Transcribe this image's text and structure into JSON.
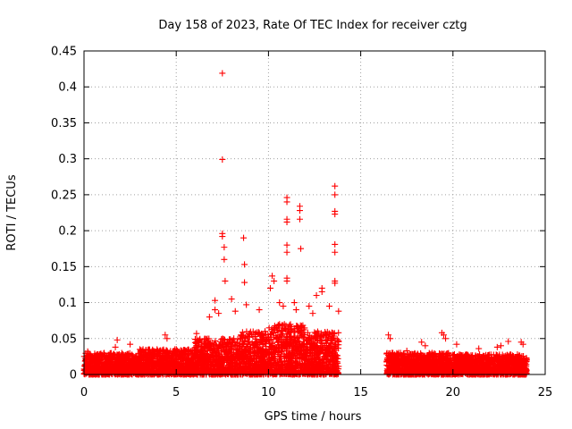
{
  "chart_data": {
    "type": "scatter",
    "title": "Day 158 of 2023, Rate Of TEC Index for receiver cztg",
    "xlabel": "GPS time / hours",
    "ylabel": "ROTI / TECUs",
    "xlim": [
      0,
      25
    ],
    "ylim": [
      0,
      0.45
    ],
    "xticks": [
      0,
      5,
      10,
      15,
      20,
      25
    ],
    "xtick_labels": [
      "0",
      "5",
      "10",
      "15",
      "20",
      "25"
    ],
    "yticks": [
      0,
      0.05,
      0.1,
      0.15,
      0.2,
      0.25,
      0.3,
      0.35,
      0.4,
      0.45
    ],
    "ytick_labels": [
      "0",
      "0.05",
      "0.1",
      "0.15",
      "0.2",
      "0.25",
      "0.3",
      "0.35",
      "0.4",
      "0.45"
    ],
    "grid": true,
    "marker": "+",
    "color": "#ff0000",
    "series": [
      {
        "name": "ROTI",
        "points": [
          [
            7.5,
            0.419
          ],
          [
            7.5,
            0.299
          ],
          [
            7.5,
            0.196
          ],
          [
            7.5,
            0.192
          ],
          [
            7.6,
            0.177
          ],
          [
            7.6,
            0.16
          ],
          [
            7.65,
            0.13
          ],
          [
            8.65,
            0.19
          ],
          [
            8.7,
            0.153
          ],
          [
            8.7,
            0.128
          ],
          [
            8.8,
            0.097
          ],
          [
            11.0,
            0.246
          ],
          [
            11.0,
            0.24
          ],
          [
            11.0,
            0.216
          ],
          [
            11.0,
            0.212
          ],
          [
            11.0,
            0.18
          ],
          [
            11.0,
            0.17
          ],
          [
            11.0,
            0.134
          ],
          [
            11.0,
            0.13
          ],
          [
            11.7,
            0.234
          ],
          [
            11.7,
            0.228
          ],
          [
            11.7,
            0.216
          ],
          [
            11.75,
            0.175
          ],
          [
            13.6,
            0.262
          ],
          [
            13.6,
            0.25
          ],
          [
            13.6,
            0.227
          ],
          [
            13.6,
            0.223
          ],
          [
            13.6,
            0.181
          ],
          [
            13.6,
            0.17
          ],
          [
            13.6,
            0.13
          ],
          [
            13.6,
            0.127
          ],
          [
            10.2,
            0.137
          ],
          [
            10.3,
            0.13
          ],
          [
            10.1,
            0.12
          ],
          [
            12.9,
            0.12
          ],
          [
            12.9,
            0.115
          ],
          [
            12.6,
            0.11
          ],
          [
            7.1,
            0.103
          ],
          [
            7.1,
            0.09
          ],
          [
            6.8,
            0.08
          ],
          [
            7.3,
            0.085
          ],
          [
            8.0,
            0.105
          ],
          [
            8.2,
            0.088
          ],
          [
            9.5,
            0.09
          ],
          [
            10.6,
            0.1
          ],
          [
            10.8,
            0.095
          ],
          [
            11.4,
            0.1
          ],
          [
            11.5,
            0.09
          ],
          [
            12.2,
            0.095
          ],
          [
            12.4,
            0.085
          ],
          [
            13.3,
            0.095
          ],
          [
            13.8,
            0.088
          ],
          [
            4.4,
            0.055
          ],
          [
            4.5,
            0.05
          ],
          [
            6.1,
            0.057
          ],
          [
            1.7,
            0.038
          ],
          [
            1.8,
            0.048
          ],
          [
            3.2,
            0.035
          ],
          [
            0.2,
            0.032
          ],
          [
            2.5,
            0.042
          ],
          [
            16.5,
            0.055
          ],
          [
            16.6,
            0.05
          ],
          [
            18.3,
            0.045
          ],
          [
            18.5,
            0.04
          ],
          [
            19.4,
            0.058
          ],
          [
            19.5,
            0.055
          ],
          [
            19.6,
            0.05
          ],
          [
            20.2,
            0.042
          ],
          [
            22.4,
            0.038
          ],
          [
            22.6,
            0.04
          ],
          [
            23.0,
            0.046
          ],
          [
            23.7,
            0.045
          ],
          [
            23.8,
            0.042
          ],
          [
            17.5,
            0.033
          ],
          [
            21.4,
            0.036
          ]
        ],
        "bands": [
          {
            "x_range": [
              0.0,
              3.0
            ],
            "y_range": [
              0.0,
              0.03
            ]
          },
          {
            "x_range": [
              3.0,
              6.0
            ],
            "y_range": [
              0.0,
              0.035
            ]
          },
          {
            "x_range": [
              6.0,
              8.5
            ],
            "y_range": [
              0.0,
              0.05
            ]
          },
          {
            "x_range": [
              8.5,
              10.0
            ],
            "y_range": [
              0.0,
              0.06
            ]
          },
          {
            "x_range": [
              10.0,
              12.0
            ],
            "y_range": [
              0.0,
              0.07
            ]
          },
          {
            "x_range": [
              12.0,
              13.8
            ],
            "y_range": [
              0.0,
              0.06
            ]
          },
          {
            "x_range": [
              16.4,
              20.0
            ],
            "y_range": [
              0.0,
              0.03
            ]
          },
          {
            "x_range": [
              20.0,
              24.0
            ],
            "y_range": [
              0.0,
              0.028
            ]
          }
        ]
      }
    ]
  }
}
